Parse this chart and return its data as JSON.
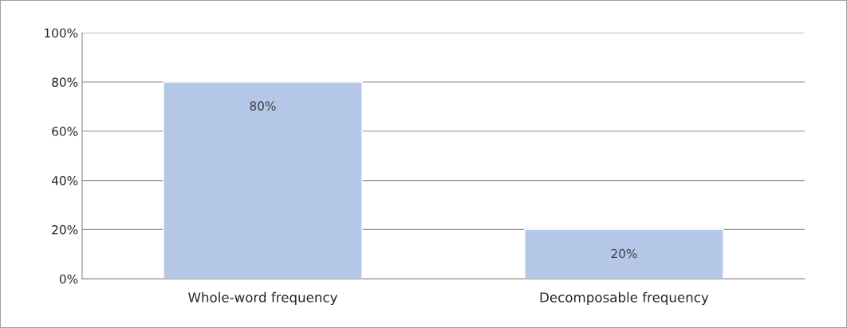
{
  "chart_data": {
    "type": "bar",
    "categories": [
      "Whole-word frequency",
      "Decomposable frequency"
    ],
    "values": [
      80,
      20
    ],
    "value_labels": [
      "80%",
      "20%"
    ],
    "color": "#b4c7e7",
    "ylim": [
      0,
      100
    ],
    "yticks": [
      {
        "value": 0,
        "label": "0%"
      },
      {
        "value": 20,
        "label": "20%"
      },
      {
        "value": 40,
        "label": "40%"
      },
      {
        "value": 60,
        "label": "60%"
      },
      {
        "value": 80,
        "label": "80%"
      },
      {
        "value": 100,
        "label": "100%"
      }
    ],
    "grid": "y",
    "legend": false
  }
}
